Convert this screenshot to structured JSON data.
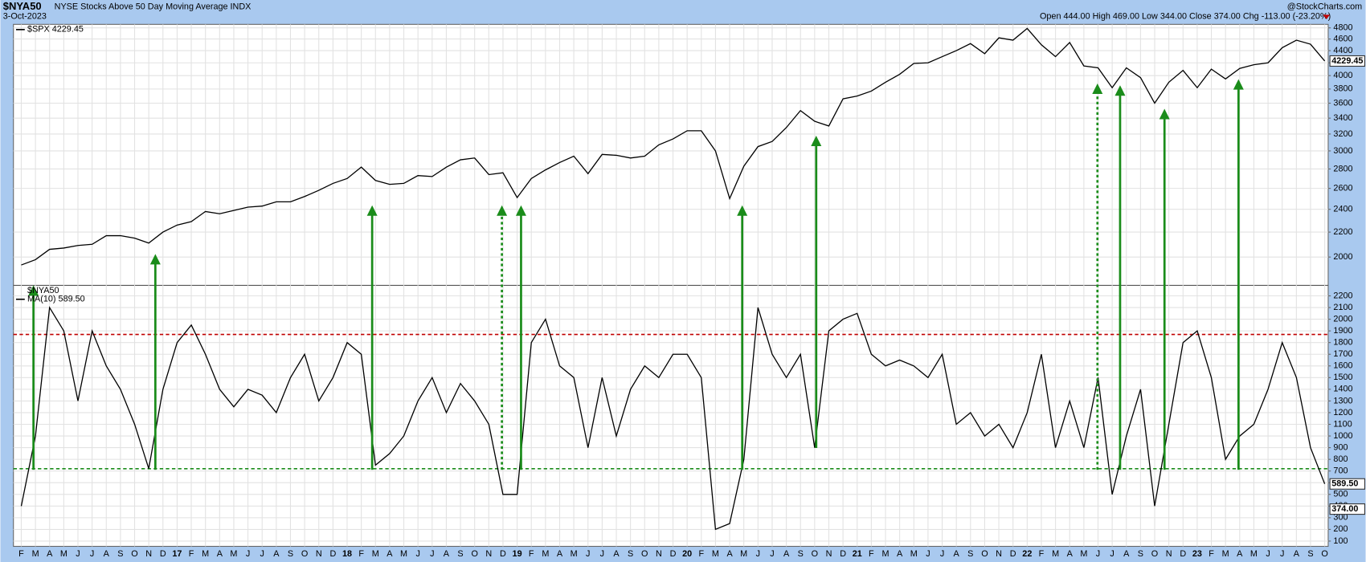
{
  "header": {
    "symbol": "$NYA50",
    "title": "NYSE Stocks Above 50 Day Moving Average INDX",
    "date": "3-Oct-2023",
    "quote": "Open 444.00 High 469.00 Low 344.00 Close 374.00 Chg -113.00 (-23.20%)",
    "brand": "@StockCharts.com"
  },
  "chart_data": [
    {
      "type": "line",
      "log": true,
      "grid": true,
      "ylim": [
        1795,
        4865
      ],
      "yticks": [
        2000,
        2200,
        2400,
        2600,
        2800,
        3000,
        3200,
        3400,
        3600,
        3800,
        4000,
        4200,
        4400,
        4600,
        4800
      ],
      "series": [
        {
          "name": "$SPX 4229.45",
          "color": "#000000",
          "values": [
            1940,
            1980,
            2060,
            2070,
            2090,
            2100,
            2170,
            2170,
            2150,
            2110,
            2200,
            2260,
            2290,
            2380,
            2360,
            2390,
            2420,
            2430,
            2470,
            2470,
            2520,
            2580,
            2650,
            2700,
            2820,
            2680,
            2640,
            2650,
            2730,
            2720,
            2820,
            2900,
            2920,
            2740,
            2760,
            2510,
            2700,
            2790,
            2870,
            2940,
            2750,
            2960,
            2950,
            2920,
            2940,
            3070,
            3140,
            3240,
            3240,
            3000,
            2500,
            2830,
            3050,
            3110,
            3280,
            3500,
            3360,
            3300,
            3660,
            3700,
            3770,
            3900,
            4020,
            4190,
            4200,
            4300,
            4400,
            4520,
            4350,
            4620,
            4580,
            4790,
            4500,
            4300,
            4540,
            4150,
            4120,
            3820,
            4120,
            3970,
            3600,
            3900,
            4080,
            3820,
            4100,
            3950,
            4110,
            4170,
            4200,
            4450,
            4580,
            4510,
            4230
          ]
        }
      ],
      "end_labels": [
        {
          "value": 4229.45,
          "label": "4229.45"
        }
      ]
    },
    {
      "type": "line",
      "grid": true,
      "ylim": [
        55,
        2290
      ],
      "yticks": [
        100,
        200,
        300,
        400,
        500,
        600,
        700,
        800,
        900,
        1000,
        1100,
        1200,
        1300,
        1400,
        1500,
        1600,
        1700,
        1800,
        1900,
        2000,
        2100,
        2200
      ],
      "categories": [
        "F",
        "M",
        "A",
        "M",
        "J",
        "J",
        "A",
        "S",
        "O",
        "N",
        "D",
        "17",
        "F",
        "M",
        "A",
        "M",
        "J",
        "J",
        "A",
        "S",
        "O",
        "N",
        "D",
        "18",
        "F",
        "M",
        "A",
        "M",
        "J",
        "J",
        "A",
        "S",
        "O",
        "N",
        "D",
        "19",
        "F",
        "M",
        "A",
        "M",
        "J",
        "J",
        "A",
        "S",
        "O",
        "N",
        "D",
        "20",
        "F",
        "M",
        "A",
        "M",
        "J",
        "J",
        "A",
        "S",
        "O",
        "N",
        "D",
        "21",
        "F",
        "M",
        "A",
        "M",
        "J",
        "J",
        "A",
        "S",
        "O",
        "N",
        "D",
        "22",
        "F",
        "M",
        "A",
        "M",
        "J",
        "J",
        "A",
        "S",
        "O",
        "N",
        "D",
        "23",
        "F",
        "M",
        "A",
        "M",
        "J",
        "J",
        "A",
        "S",
        "O"
      ],
      "legend": [
        "$NYA50"
      ],
      "series": [
        {
          "name": "MA(10) 589.50",
          "color": "#000000",
          "values": [
            400,
            1000,
            2100,
            1900,
            1300,
            1900,
            1600,
            1400,
            1100,
            720,
            1400,
            1800,
            1950,
            1700,
            1400,
            1250,
            1400,
            1350,
            1200,
            1500,
            1700,
            1300,
            1500,
            1800,
            1700,
            750,
            850,
            1000,
            1300,
            1500,
            1200,
            1450,
            1300,
            1100,
            500,
            500,
            1800,
            2000,
            1600,
            1500,
            900,
            1500,
            1000,
            1400,
            1600,
            1500,
            1700,
            1700,
            1500,
            200,
            250,
            800,
            2100,
            1700,
            1500,
            1700,
            900,
            1900,
            2000,
            2050,
            1700,
            1600,
            1650,
            1600,
            1500,
            1700,
            1100,
            1200,
            1000,
            1100,
            900,
            1200,
            1700,
            900,
            1300,
            900,
            1500,
            500,
            1000,
            1400,
            400,
            1100,
            1800,
            1900,
            1500,
            800,
            1000,
            1100,
            1400,
            1800,
            1500,
            900,
            590
          ]
        }
      ],
      "hlines": [
        {
          "value": 1870,
          "color": "#c00000"
        },
        {
          "value": 720,
          "color": "#1a8c1a"
        }
      ],
      "end_labels": [
        {
          "value": 589.5,
          "label": "589.50"
        },
        {
          "value": 374,
          "label": "374.00"
        }
      ]
    }
  ]
}
